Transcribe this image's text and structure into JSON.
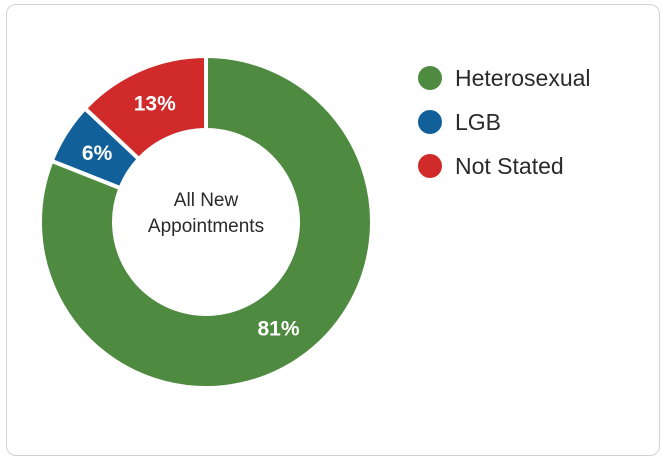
{
  "chart_data": {
    "type": "pie",
    "donut": true,
    "center_label": [
      "All New",
      "Appointments"
    ],
    "categories": [
      "Heterosexual",
      "LGB",
      "Not Stated"
    ],
    "values": [
      81,
      6,
      13
    ],
    "value_labels": [
      "81%",
      "6%",
      "13%"
    ],
    "colors": [
      "#4e8a3f",
      "#11609a",
      "#d02a2a"
    ],
    "legend_position": "right"
  }
}
